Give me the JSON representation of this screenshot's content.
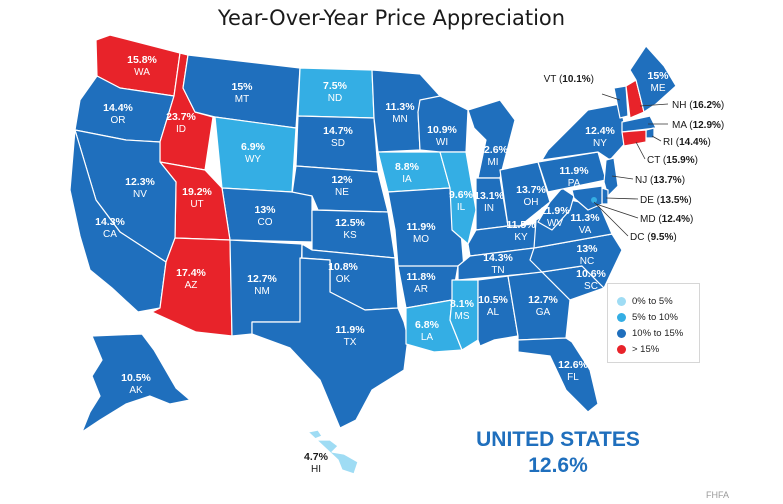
{
  "title": "Year-Over-Year Price Appreciation",
  "colors": {
    "bin_0_5": "#9fdcf4",
    "bin_5_10": "#34aee4",
    "bin_10_15": "#1f6fbd",
    "bin_gt_15": "#e8232a"
  },
  "legend": [
    {
      "label": "0% to 5%",
      "bin": "bin_0_5"
    },
    {
      "label": "5% to 10%",
      "bin": "bin_5_10"
    },
    {
      "label": "10% to 15%",
      "bin": "bin_10_15"
    },
    {
      "label": "> 15%",
      "bin": "bin_gt_15"
    }
  ],
  "states": [
    {
      "abbr": "WA",
      "value": "15.8%"
    },
    {
      "abbr": "OR",
      "value": "14.4%"
    },
    {
      "abbr": "ID",
      "value": "23.7%"
    },
    {
      "abbr": "MT",
      "value": "15%"
    },
    {
      "abbr": "ND",
      "value": "7.5%"
    },
    {
      "abbr": "MN",
      "value": "11.3%"
    },
    {
      "abbr": "WY",
      "value": "6.9%"
    },
    {
      "abbr": "SD",
      "value": "14.7%"
    },
    {
      "abbr": "WI",
      "value": "10.9%"
    },
    {
      "abbr": "MI",
      "value": "12.6%"
    },
    {
      "abbr": "NY",
      "value": "12.4%"
    },
    {
      "abbr": "ME",
      "value": "15%"
    },
    {
      "abbr": "NV",
      "value": "12.3%"
    },
    {
      "abbr": "CA",
      "value": "14.3%"
    },
    {
      "abbr": "UT",
      "value": "19.2%"
    },
    {
      "abbr": "CO",
      "value": "13%"
    },
    {
      "abbr": "NE",
      "value": "12%"
    },
    {
      "abbr": "IA",
      "value": "8.8%"
    },
    {
      "abbr": "IL",
      "value": "9.6%"
    },
    {
      "abbr": "IN",
      "value": "13.1%"
    },
    {
      "abbr": "OH",
      "value": "13.7%"
    },
    {
      "abbr": "PA",
      "value": "11.9%"
    },
    {
      "abbr": "KS",
      "value": "12.5%"
    },
    {
      "abbr": "MO",
      "value": "11.9%"
    },
    {
      "abbr": "KY",
      "value": "11.5%"
    },
    {
      "abbr": "WV",
      "value": "11.9%"
    },
    {
      "abbr": "VA",
      "value": "11.3%"
    },
    {
      "abbr": "AZ",
      "value": "17.4%"
    },
    {
      "abbr": "NM",
      "value": "12.7%"
    },
    {
      "abbr": "OK",
      "value": "10.8%"
    },
    {
      "abbr": "AR",
      "value": "11.8%"
    },
    {
      "abbr": "TN",
      "value": "14.3%"
    },
    {
      "abbr": "NC",
      "value": "13%"
    },
    {
      "abbr": "SC",
      "value": "10.6%"
    },
    {
      "abbr": "MS",
      "value": "8.1%"
    },
    {
      "abbr": "AL",
      "value": "10.5%"
    },
    {
      "abbr": "GA",
      "value": "12.7%"
    },
    {
      "abbr": "TX",
      "value": "11.9%"
    },
    {
      "abbr": "LA",
      "value": "6.8%"
    },
    {
      "abbr": "FL",
      "value": "12.6%"
    },
    {
      "abbr": "AK",
      "value": "10.5%"
    },
    {
      "abbr": "HI",
      "value": "4.7%"
    },
    {
      "abbr": "VT",
      "value": "10.1%"
    },
    {
      "abbr": "NH",
      "value": "16.2%"
    },
    {
      "abbr": "MA",
      "value": "12.9%"
    },
    {
      "abbr": "RI",
      "value": "14.4%"
    },
    {
      "abbr": "CT",
      "value": "15.9%"
    },
    {
      "abbr": "NJ",
      "value": "13.7%"
    },
    {
      "abbr": "DE",
      "value": "13.5%"
    },
    {
      "abbr": "MD",
      "value": "12.4%"
    },
    {
      "abbr": "DC",
      "value": "9.5%"
    }
  ],
  "national": {
    "label": "UNITED STATES",
    "value": "12.6%"
  },
  "source": "FHFA"
}
